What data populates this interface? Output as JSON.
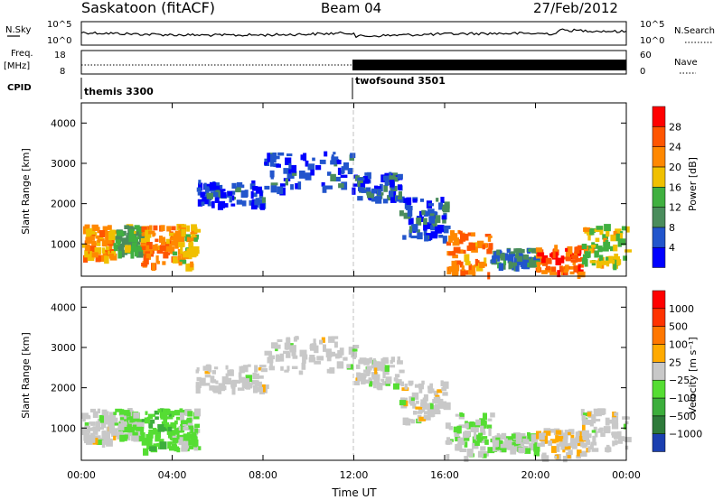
{
  "header": {
    "title": "Saskatoon (fitACF)",
    "beam": "Beam 04",
    "date": "27/Feb/2012"
  },
  "summary_panel": {
    "left_label_nsky": "N.Sky",
    "left_label_freq": "Freq.",
    "left_label_freq_unit": "[MHz]",
    "left_label_cpid": "CPID",
    "right_label_nsearch": "N.Search",
    "right_label_nave": "Nave",
    "noise_ticks": [
      "10^5",
      "10^0"
    ],
    "freq_ticks": [
      "18",
      "8"
    ],
    "nave_ticks": [
      "60",
      "0"
    ],
    "cpid_segments": [
      {
        "label": "themis 3300",
        "start_hour": 0,
        "end_hour": 12
      },
      {
        "label": "twofsound 3501",
        "start_hour": 12,
        "end_hour": 24
      }
    ]
  },
  "colors": {
    "power_scale": [
      "#0000ff",
      "#2255cc",
      "#4a8c5c",
      "#40b040",
      "#f0c000",
      "#ff8800",
      "#ff5500",
      "#ff0000"
    ],
    "velocity_scale": [
      "#1b3fb0",
      "#2e7a3a",
      "#3cae3c",
      "#55dd33",
      "#c8c8c8",
      "#ffaa00",
      "#ff7700",
      "#ff3300",
      "#ff0000"
    ]
  },
  "chart_data": [
    {
      "type": "heatmap",
      "panel": "power",
      "ylabel": "Slant Range [km]",
      "ylim": [
        200,
        4500
      ],
      "yticks": [
        "1000",
        "2000",
        "3000",
        "4000"
      ],
      "xlim": [
        0,
        24
      ],
      "colorbar": {
        "label": "Power [dB]",
        "ticks": [
          "28",
          "24",
          "20",
          "16",
          "12",
          "8",
          "4"
        ],
        "range": [
          0,
          30
        ]
      },
      "regions": [
        {
          "t0": 0.0,
          "t1": 1.4,
          "r0": 700,
          "r1": 1500,
          "v": 20
        },
        {
          "t0": 1.4,
          "t1": 2.6,
          "r0": 800,
          "r1": 1500,
          "v": 12
        },
        {
          "t0": 2.6,
          "t1": 4.0,
          "r0": 500,
          "r1": 1500,
          "v": 22
        },
        {
          "t0": 4.0,
          "t1": 5.0,
          "r0": 500,
          "r1": 1500,
          "v": 18
        },
        {
          "t0": 5.0,
          "t1": 8.0,
          "r0": 2000,
          "r1": 2600,
          "v": 4
        },
        {
          "t0": 8.0,
          "t1": 12.0,
          "r0": 2400,
          "r1": 3300,
          "v": 5
        },
        {
          "t0": 12.0,
          "t1": 14.0,
          "r0": 2100,
          "r1": 2800,
          "v": 5
        },
        {
          "t0": 14.0,
          "t1": 16.0,
          "r0": 1200,
          "r1": 2200,
          "v": 6
        },
        {
          "t0": 16.0,
          "t1": 18.0,
          "r0": 300,
          "r1": 1400,
          "v": 22
        },
        {
          "t0": 18.0,
          "t1": 20.0,
          "r0": 500,
          "r1": 900,
          "v": 8
        },
        {
          "t0": 20.0,
          "t1": 22.0,
          "r0": 300,
          "r1": 1000,
          "v": 24
        },
        {
          "t0": 22.0,
          "t1": 24.0,
          "r0": 500,
          "r1": 1500,
          "v": 16
        }
      ]
    },
    {
      "type": "heatmap",
      "panel": "velocity",
      "ylabel": "Slant Range [km]",
      "ylim": [
        200,
        4500
      ],
      "yticks": [
        "1000",
        "2000",
        "3000",
        "4000"
      ],
      "xlim": [
        0,
        24
      ],
      "xticks": [
        "00:00",
        "04:00",
        "08:00",
        "12:00",
        "16:00",
        "20:00",
        "00:00"
      ],
      "xlabel": "Time UT",
      "colorbar": {
        "label": "Velocity [m s⁻¹]",
        "ticks": [
          "1000",
          "500",
          "100",
          "25",
          "−25",
          "−100",
          "−500",
          "−1000"
        ],
        "range": [
          -1200,
          1200
        ]
      },
      "regions": [
        {
          "t0": 0.0,
          "t1": 1.4,
          "r0": 700,
          "r1": 1500,
          "v": 0
        },
        {
          "t0": 1.4,
          "t1": 2.6,
          "r0": 800,
          "r1": 1500,
          "v": -150
        },
        {
          "t0": 2.6,
          "t1": 4.0,
          "r0": 500,
          "r1": 1500,
          "v": -300
        },
        {
          "t0": 4.0,
          "t1": 5.0,
          "r0": 500,
          "r1": 1500,
          "v": -200
        },
        {
          "t0": 5.0,
          "t1": 8.0,
          "r0": 2000,
          "r1": 2600,
          "v": 0
        },
        {
          "t0": 8.0,
          "t1": 12.0,
          "r0": 2400,
          "r1": 3300,
          "v": 0
        },
        {
          "t0": 12.0,
          "t1": 14.0,
          "r0": 2100,
          "r1": 2800,
          "v": 0
        },
        {
          "t0": 14.0,
          "t1": 16.0,
          "r0": 1200,
          "r1": 2200,
          "v": 0
        },
        {
          "t0": 16.0,
          "t1": 18.0,
          "r0": 300,
          "r1": 1400,
          "v": -150
        },
        {
          "t0": 18.0,
          "t1": 20.0,
          "r0": 500,
          "r1": 900,
          "v": -100
        },
        {
          "t0": 20.0,
          "t1": 22.0,
          "r0": 300,
          "r1": 1000,
          "v": 60
        },
        {
          "t0": 22.0,
          "t1": 24.0,
          "r0": 500,
          "r1": 1500,
          "v": 0
        }
      ]
    }
  ]
}
